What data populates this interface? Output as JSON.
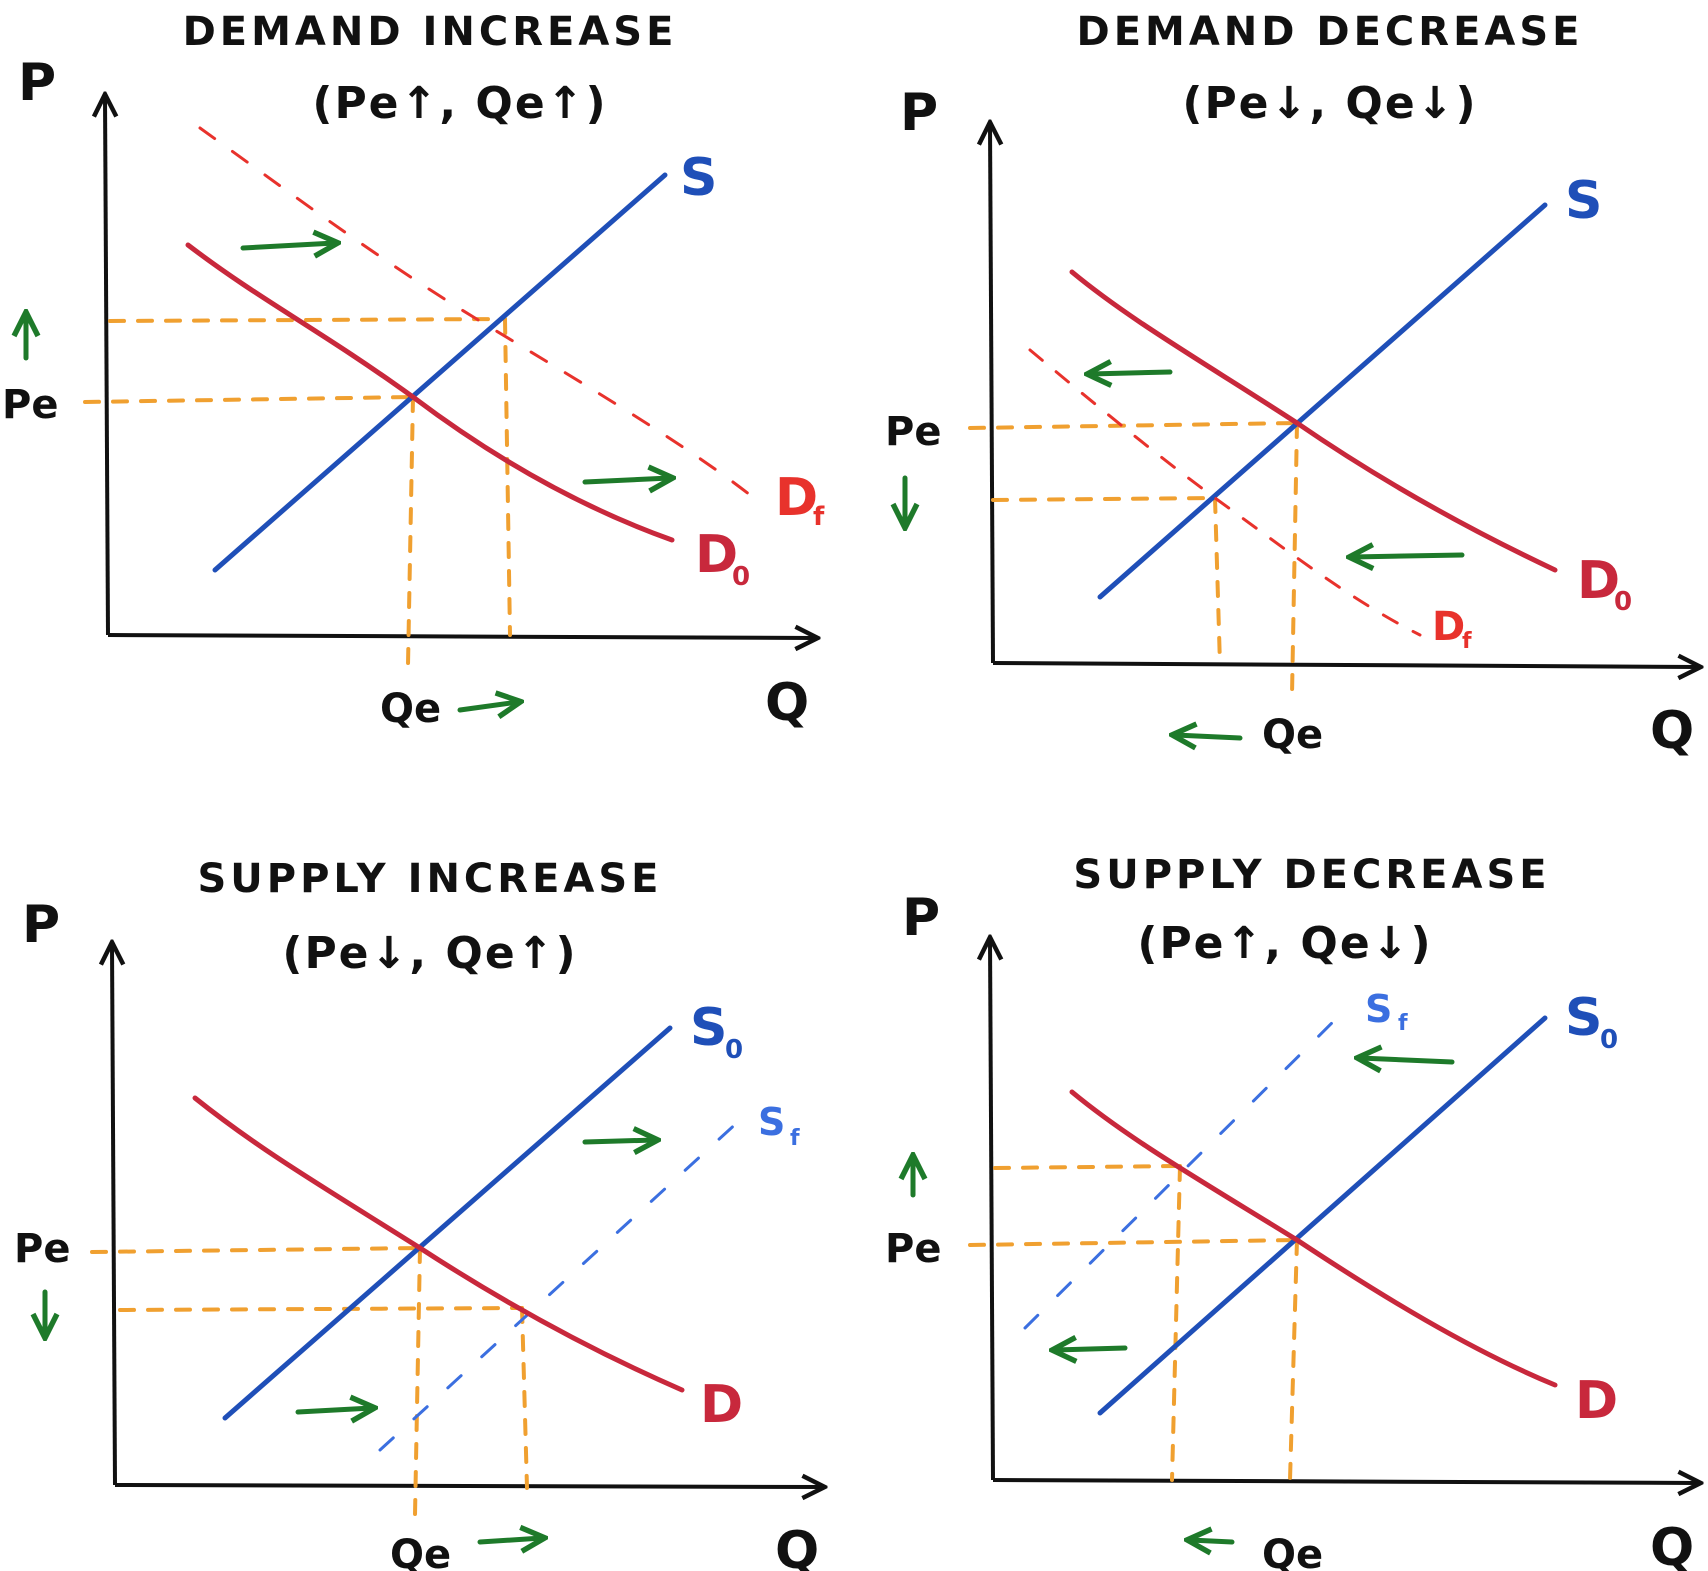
{
  "colors": {
    "axis": "#111111",
    "supply": "#1f4fb8",
    "supply_shift": "#3b6fe0",
    "demand": "#c8283c",
    "demand_shift": "#e8322c",
    "guide": "#f0a030",
    "arrow": "#1e7a2a"
  },
  "axis_labels": {
    "price": "P",
    "quantity": "Q"
  },
  "panels": [
    {
      "title": "DEMAND INCREASE",
      "subtitle": "(Pe↑, Qe↑)",
      "pe_label": "Pe",
      "qe_label": "Qe",
      "pe_arrow": "↑",
      "qe_arrow": "→",
      "curves": {
        "s": "S",
        "d0": "D",
        "d0_sub": "0",
        "df": "D",
        "df_sub": "f"
      }
    },
    {
      "title": "DEMAND DECREASE",
      "subtitle": "(Pe↓, Qe↓)",
      "pe_label": "Pe",
      "qe_label": "Qe",
      "pe_arrow": "↓",
      "qe_arrow": "←",
      "curves": {
        "s": "S",
        "d0": "D",
        "d0_sub": "0",
        "df": "D",
        "df_sub": "f"
      }
    },
    {
      "title": "SUPPLY INCREASE",
      "subtitle": "(Pe↓, Qe↑)",
      "pe_label": "Pe",
      "qe_label": "Qe",
      "pe_arrow": "↓",
      "qe_arrow": "→",
      "curves": {
        "s0": "S",
        "s0_sub": "0",
        "sf": "S",
        "sf_sub": "f",
        "d": "D"
      }
    },
    {
      "title": "SUPPLY DECREASE",
      "subtitle": "(Pe↑, Qe↓)",
      "pe_label": "Pe",
      "qe_label": "Qe",
      "pe_arrow": "↑",
      "qe_arrow": "←",
      "curves": {
        "s0": "S",
        "s0_sub": "0",
        "sf": "S",
        "sf_sub": "f",
        "d": "D"
      }
    }
  ]
}
